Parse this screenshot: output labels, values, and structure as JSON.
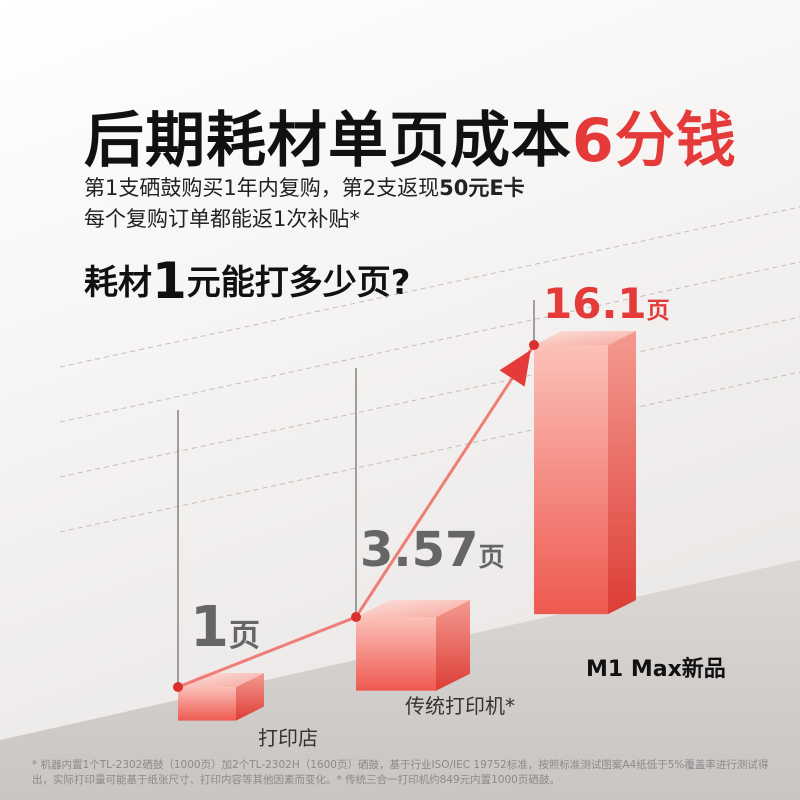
{
  "header": {
    "title_main": "后期耗材单页成本",
    "title_highlight": "6分钱",
    "subtitle_line1_pre": "第1支硒鼓购买1年内复购，第2支返现",
    "subtitle_line1_bold": "50元E卡",
    "subtitle_line2": "每个复购订单都能返1次补贴*",
    "question_pre": "耗材",
    "question_num": "1",
    "question_post": "元能打多少页?"
  },
  "colors": {
    "accent": "#e43a3a",
    "value_gray": "#666666",
    "bar_light": "#fbc1b9",
    "bar_dark": "#ee5950"
  },
  "chart_data": {
    "type": "bar",
    "categories": [
      "打印店",
      "传统打印机*",
      "M1 Max新品"
    ],
    "values": [
      1,
      3.57,
      16.1
    ],
    "value_labels": [
      {
        "number": "1",
        "unit": "页"
      },
      {
        "number": "3.57",
        "unit": "页"
      },
      {
        "number": "16.1",
        "unit": "页"
      }
    ],
    "title": "耗材1元能打多少页?",
    "xlabel": "",
    "ylabel": "",
    "grid": true,
    "legend": "none"
  },
  "footnote": "* 机器内置1个TL-2302硒鼓（1000页）加2个TL-2302H（1600页）硒鼓，基于行业ISO/IEC 19752标准，按照标准测试图案A4纸低于5%覆盖率进行测试得出，实际打印量可能基于纸张尺寸、打印内容等其他因素而变化。* 传统三合一打印机约849元内置1000页硒鼓。"
}
